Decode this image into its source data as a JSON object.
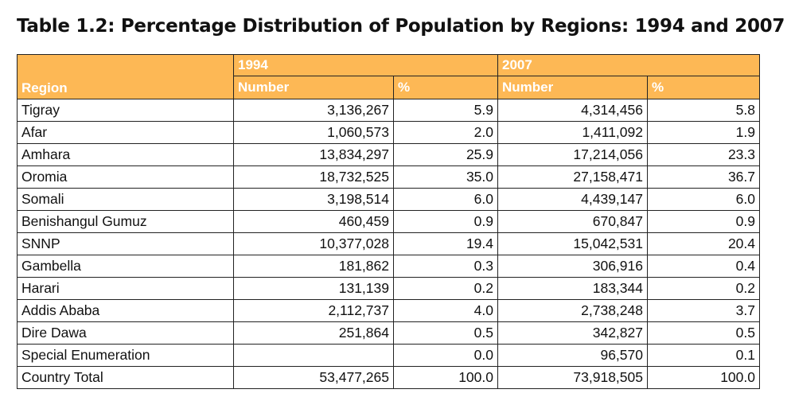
{
  "title": "Table 1.2: Percentage Distribution of Population by Regions: 1994 and 2007",
  "header": {
    "region": "Region",
    "year1": "1994",
    "year2": "2007",
    "number": "Number",
    "percent": "%"
  },
  "rows": [
    {
      "region": "Tigray",
      "n1994": "3,136,267",
      "p1994": "5.9",
      "n2007": "4,314,456",
      "p2007": "5.8"
    },
    {
      "region": "Afar",
      "n1994": "1,060,573",
      "p1994": "2.0",
      "n2007": "1,411,092",
      "p2007": "1.9"
    },
    {
      "region": "Amhara",
      "n1994": "13,834,297",
      "p1994": "25.9",
      "n2007": "17,214,056",
      "p2007": "23.3"
    },
    {
      "region": "Oromia",
      "n1994": "18,732,525",
      "p1994": "35.0",
      "n2007": "27,158,471",
      "p2007": "36.7"
    },
    {
      "region": "Somali",
      "n1994": "3,198,514",
      "p1994": "6.0",
      "n2007": "4,439,147",
      "p2007": "6.0"
    },
    {
      "region": "Benishangul Gumuz",
      "n1994": "460,459",
      "p1994": "0.9",
      "n2007": "670,847",
      "p2007": "0.9"
    },
    {
      "region": "SNNP",
      "n1994": "10,377,028",
      "p1994": "19.4",
      "n2007": "15,042,531",
      "p2007": "20.4"
    },
    {
      "region": "Gambella",
      "n1994": "181,862",
      "p1994": "0.3",
      "n2007": "306,916",
      "p2007": "0.4"
    },
    {
      "region": "Harari",
      "n1994": "131,139",
      "p1994": "0.2",
      "n2007": "183,344",
      "p2007": "0.2"
    },
    {
      "region": "Addis Ababa",
      "n1994": "2,112,737",
      "p1994": "4.0",
      "n2007": "2,738,248",
      "p2007": "3.7"
    },
    {
      "region": "Dire Dawa",
      "n1994": "251,864",
      "p1994": "0.5",
      "n2007": "342,827",
      "p2007": "0.5"
    },
    {
      "region": "Special Enumeration",
      "n1994": "",
      "p1994": "0.0",
      "n2007": "96,570",
      "p2007": "0.1"
    },
    {
      "region": "Country Total",
      "n1994": "53,477,265",
      "p1994": "100.0",
      "n2007": "73,918,505",
      "p2007": "100.0"
    }
  ],
  "colors": {
    "header_bg": "#FDB855",
    "header_text": "#ffffff",
    "border": "#222222"
  }
}
